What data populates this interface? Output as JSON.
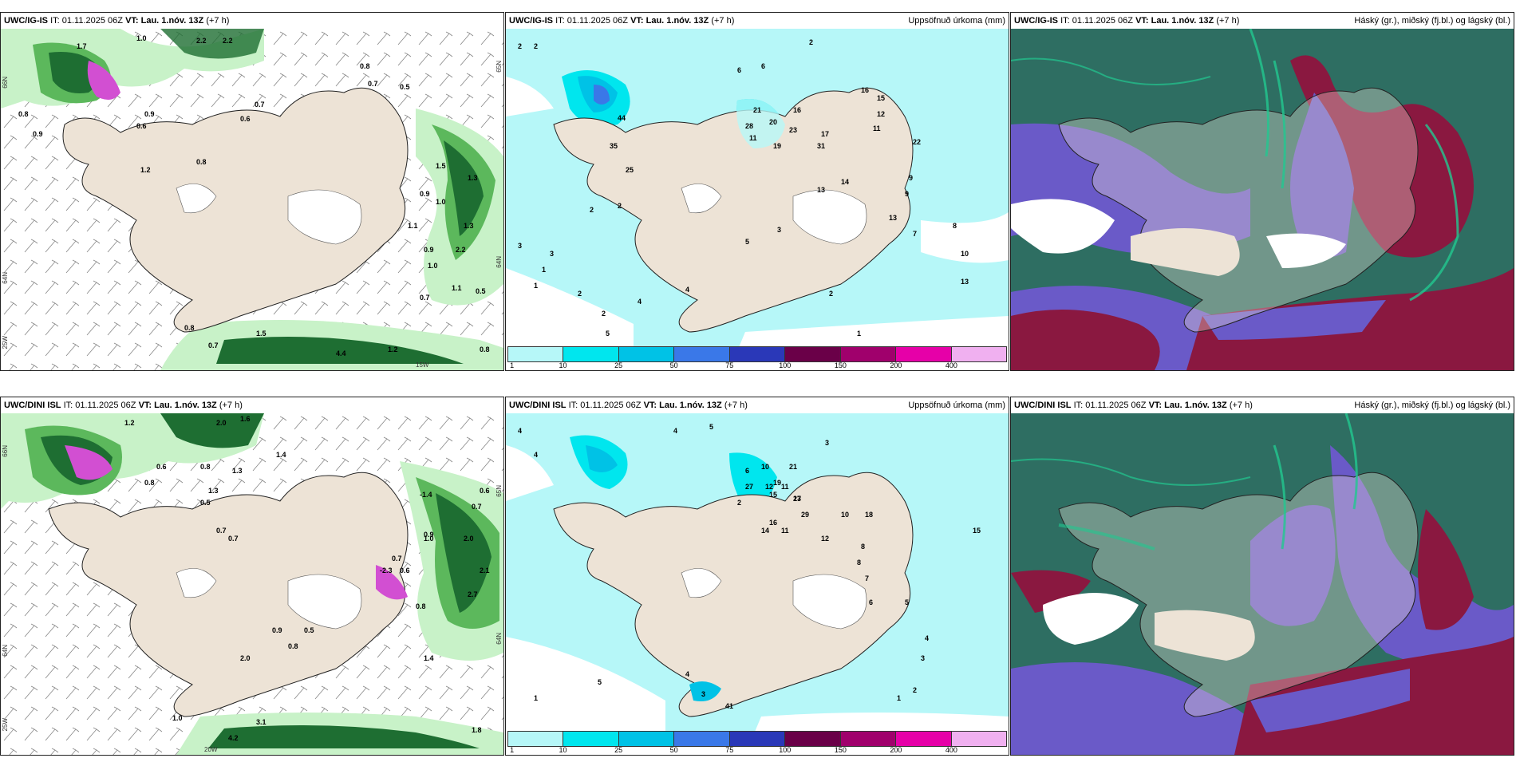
{
  "panels": [
    {
      "id": "p1",
      "model": "UWC/IG-IS",
      "it_label": "IT:",
      "it_value": "01.11.2025 06Z",
      "vt_label": "VT:",
      "vt_value": "Lau. 1.nóv. 13Z",
      "lead": "(+7 h)",
      "right_title": "",
      "axis_labels": [
        "66N",
        "64N",
        "25W",
        "15W",
        "65N",
        "64N"
      ],
      "values": [
        "1.7",
        "2.2",
        "2.2",
        "0.8",
        "0.7",
        "0.5",
        "1.0",
        "0.9",
        "0.8",
        "0.9",
        "1.2",
        "0.8",
        "0.6",
        "0.7",
        "0.6",
        "0.9",
        "2.2",
        "1.0",
        "0.7",
        "1.1",
        "0.5",
        "0.8",
        "0.7",
        "1.2",
        "0.8",
        "1.0",
        "1.3",
        "4.4",
        "1.5",
        "0.9",
        "1.1",
        "1.5",
        "1.3"
      ]
    },
    {
      "id": "p2",
      "model": "UWC/IG-IS",
      "it_label": "IT:",
      "it_value": "01.11.2025 06Z",
      "vt_label": "VT:",
      "vt_value": "Lau. 1.nóv. 13Z",
      "lead": "(+7 h)",
      "right_title": "Uppsöfnuð úrkoma (mm)",
      "legend": [
        "1",
        "10",
        "25",
        "50",
        "75",
        "100",
        "150",
        "200",
        "400"
      ],
      "legend_colors": [
        "#b6f7f8",
        "#00e6ee",
        "#00c2e6",
        "#3a78e8",
        "#2a38b8",
        "#6a0048",
        "#a0006c",
        "#e600a8",
        "#f0b0f0"
      ],
      "values": [
        "2",
        "2",
        "6",
        "6",
        "2",
        "16",
        "15",
        "12",
        "11",
        "44",
        "16",
        "21",
        "28",
        "20",
        "11",
        "23",
        "19",
        "31",
        "17",
        "22",
        "35",
        "25",
        "9",
        "9",
        "13",
        "14",
        "13",
        "7",
        "8",
        "10",
        "13",
        "4",
        "2",
        "1",
        "1",
        "2",
        "5",
        "4",
        "3",
        "3",
        "2",
        "2",
        "5",
        "3",
        "2",
        "1"
      ]
    },
    {
      "id": "p3",
      "model": "UWC/IG-IS",
      "it_label": "IT:",
      "it_value": "01.11.2025 06Z",
      "vt_label": "VT:",
      "vt_value": "Lau. 1.nóv. 13Z",
      "lead": "(+7 h)",
      "right_title": "Háský (gr.), miðský (fj.bl.) og lágský (bl.)"
    },
    {
      "id": "p4",
      "model": "UWC/DINI ISL",
      "it_label": "IT:",
      "it_value": "01.11.2025 06Z",
      "vt_label": "VT:",
      "vt_value": "Lau. 1.nóv. 13Z",
      "lead": "(+7 h)",
      "right_title": "",
      "axis_labels": [
        "66N",
        "64N",
        "25W",
        "20W",
        "65N",
        "64N"
      ],
      "values": [
        "1.2",
        "2.0",
        "1.6",
        "1.3",
        "0.6",
        "0.8",
        "0.8",
        "0.5",
        "1.3",
        "1.4",
        "0.7",
        "0.7",
        "1.0",
        "2.0",
        "2.1",
        "2.7",
        "-1.4",
        "-2.3",
        "0.6",
        "0.7",
        "0.9",
        "0.7",
        "0.6",
        "0.5",
        "0.9",
        "0.8",
        "2.0",
        "1.4",
        "0.8",
        "3.1",
        "4.2",
        "1.0",
        "1.8"
      ]
    },
    {
      "id": "p5",
      "model": "UWC/DINI ISL",
      "it_label": "IT:",
      "it_value": "01.11.2025 06Z",
      "vt_label": "VT:",
      "vt_value": "Lau. 1.nóv. 13Z",
      "lead": "(+7 h)",
      "right_title": "Uppsöfnuð úrkoma (mm)",
      "legend": [
        "1",
        "10",
        "25",
        "50",
        "75",
        "100",
        "150",
        "200",
        "400"
      ],
      "legend_colors": [
        "#b6f7f8",
        "#00e6ee",
        "#00c2e6",
        "#3a78e8",
        "#2a38b8",
        "#6a0048",
        "#a0006c",
        "#e600a8",
        "#f0b0f0"
      ],
      "values": [
        "4",
        "4",
        "4",
        "5",
        "3",
        "2",
        "6",
        "10",
        "19",
        "21",
        "11",
        "27",
        "12",
        "13",
        "15",
        "18",
        "27",
        "29",
        "16",
        "14",
        "11",
        "12",
        "10",
        "8",
        "8",
        "7",
        "6",
        "5",
        "4",
        "3",
        "2",
        "1",
        "41",
        "3",
        "4",
        "5",
        "1",
        "15"
      ]
    },
    {
      "id": "p6",
      "model": "UWC/DINI ISL",
      "it_label": "IT:",
      "it_value": "01.11.2025 06Z",
      "vt_label": "VT:",
      "vt_value": "Lau. 1.nóv. 13Z",
      "lead": "(+7 h)",
      "right_title": "Háský (gr.), miðský (fj.bl.) og lágský (bl.)"
    }
  ],
  "colors": {
    "land": "#ede3d6",
    "precip_light": "#b6f7f8",
    "green_light": "#c8f2c8",
    "green_mid": "#5cb85c",
    "green_dark": "#1e6e32",
    "magenta": "#d24fd2",
    "cloud_high": "#2e6e62",
    "cloud_mid": "#6a5ac8",
    "cloud_low": "#8a1840",
    "cloud_green": "#22c890"
  }
}
